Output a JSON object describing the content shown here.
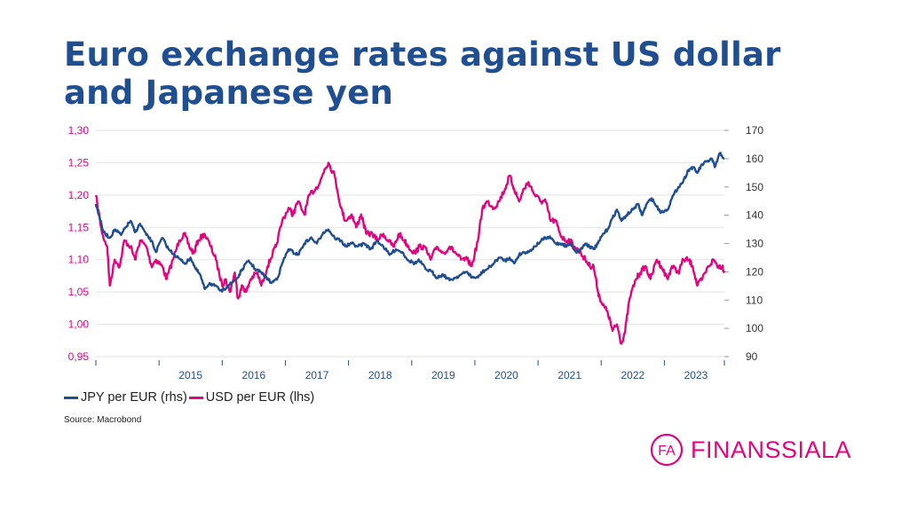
{
  "title": "Euro exchange rates against US dollar and Japanese yen",
  "source": "Source: Macrobond",
  "logo": {
    "monogram": "FA",
    "word": "FINANSSIALA"
  },
  "colors": {
    "title": "#1f4e91",
    "jpy": "#1f4e91",
    "usd": "#e0067f",
    "left_axis": "#e0067f",
    "right_axis": "#333333",
    "x_axis": "#1f4e91"
  },
  "legend": [
    {
      "label": "JPY per EUR (rhs)",
      "color": "#1f4e91"
    },
    {
      "label": "USD per EUR (lhs)",
      "color": "#e0067f"
    }
  ],
  "chart_data": {
    "type": "line",
    "title": "Euro exchange rates against US dollar and Japanese yen",
    "x_range": [
      2014.0,
      2023.95
    ],
    "x_ticks": [
      "2015",
      "2016",
      "2017",
      "2018",
      "2019",
      "2020",
      "2021",
      "2022",
      "2023"
    ],
    "y_left": {
      "label": "USD per EUR (lhs)",
      "range": [
        0.95,
        1.3
      ],
      "ticks": [
        "0,95",
        "1,00",
        "1,05",
        "1,10",
        "1,15",
        "1,20",
        "1,25",
        "1,30"
      ]
    },
    "y_right": {
      "label": "JPY per EUR (rhs)",
      "range": [
        90,
        170
      ],
      "ticks": [
        "90",
        "100",
        "110",
        "120",
        "130",
        "140",
        "150",
        "160",
        "170"
      ]
    },
    "grid": true,
    "legend_position": "bottom-left",
    "series": [
      {
        "name": "USD per EUR (lhs)",
        "axis": "left",
        "color": "#e0067f",
        "points": [
          [
            2014.0,
            1.2
          ],
          [
            2014.1,
            1.14
          ],
          [
            2014.18,
            1.12
          ],
          [
            2014.22,
            1.06
          ],
          [
            2014.3,
            1.1
          ],
          [
            2014.38,
            1.09
          ],
          [
            2014.45,
            1.13
          ],
          [
            2014.55,
            1.12
          ],
          [
            2014.62,
            1.1
          ],
          [
            2014.7,
            1.13
          ],
          [
            2014.8,
            1.12
          ],
          [
            2014.88,
            1.09
          ],
          [
            2014.95,
            1.1
          ],
          [
            2015.05,
            1.09
          ],
          [
            2015.12,
            1.07
          ],
          [
            2015.22,
            1.1
          ],
          [
            2015.32,
            1.13
          ],
          [
            2015.4,
            1.14
          ],
          [
            2015.48,
            1.12
          ],
          [
            2015.55,
            1.11
          ],
          [
            2015.62,
            1.13
          ],
          [
            2015.72,
            1.14
          ],
          [
            2015.82,
            1.12
          ],
          [
            2015.9,
            1.1
          ],
          [
            2016.0,
            1.06
          ],
          [
            2016.05,
            1.07
          ],
          [
            2016.12,
            1.05
          ],
          [
            2016.2,
            1.08
          ],
          [
            2016.25,
            1.04
          ],
          [
            2016.32,
            1.06
          ],
          [
            2016.38,
            1.05
          ],
          [
            2016.45,
            1.07
          ],
          [
            2016.55,
            1.08
          ],
          [
            2016.62,
            1.06
          ],
          [
            2016.72,
            1.09
          ],
          [
            2016.8,
            1.11
          ],
          [
            2016.85,
            1.12
          ],
          [
            2016.95,
            1.16
          ],
          [
            2017.05,
            1.18
          ],
          [
            2017.12,
            1.17
          ],
          [
            2017.2,
            1.19
          ],
          [
            2017.3,
            1.17
          ],
          [
            2017.38,
            1.2
          ],
          [
            2017.48,
            1.21
          ],
          [
            2017.55,
            1.22
          ],
          [
            2017.62,
            1.24
          ],
          [
            2017.68,
            1.25
          ],
          [
            2017.78,
            1.23
          ],
          [
            2017.88,
            1.18
          ],
          [
            2017.95,
            1.16
          ],
          [
            2018.05,
            1.17
          ],
          [
            2018.12,
            1.15
          ],
          [
            2018.2,
            1.17
          ],
          [
            2018.28,
            1.14
          ],
          [
            2018.38,
            1.14
          ],
          [
            2018.45,
            1.13
          ],
          [
            2018.55,
            1.14
          ],
          [
            2018.62,
            1.13
          ],
          [
            2018.72,
            1.12
          ],
          [
            2018.8,
            1.14
          ],
          [
            2018.88,
            1.13
          ],
          [
            2018.95,
            1.12
          ],
          [
            2019.05,
            1.11
          ],
          [
            2019.12,
            1.12
          ],
          [
            2019.2,
            1.12
          ],
          [
            2019.3,
            1.1
          ],
          [
            2019.4,
            1.12
          ],
          [
            2019.5,
            1.11
          ],
          [
            2019.6,
            1.12
          ],
          [
            2019.7,
            1.11
          ],
          [
            2019.78,
            1.1
          ],
          [
            2019.88,
            1.1
          ],
          [
            2019.95,
            1.09
          ],
          [
            2020.05,
            1.13
          ],
          [
            2020.12,
            1.18
          ],
          [
            2020.2,
            1.19
          ],
          [
            2020.3,
            1.18
          ],
          [
            2020.38,
            1.19
          ],
          [
            2020.48,
            1.21
          ],
          [
            2020.55,
            1.23
          ],
          [
            2020.62,
            1.21
          ],
          [
            2020.7,
            1.19
          ],
          [
            2020.78,
            1.21
          ],
          [
            2020.85,
            1.22
          ],
          [
            2020.95,
            1.2
          ],
          [
            2021.05,
            1.19
          ],
          [
            2021.12,
            1.19
          ],
          [
            2021.2,
            1.16
          ],
          [
            2021.28,
            1.16
          ],
          [
            2021.35,
            1.14
          ],
          [
            2021.42,
            1.13
          ],
          [
            2021.5,
            1.13
          ],
          [
            2021.58,
            1.12
          ],
          [
            2021.68,
            1.11
          ],
          [
            2021.75,
            1.1
          ],
          [
            2021.82,
            1.09
          ],
          [
            2021.88,
            1.09
          ],
          [
            2021.95,
            1.05
          ],
          [
            2022.02,
            1.03
          ],
          [
            2022.1,
            1.02
          ],
          [
            2022.18,
            0.99
          ],
          [
            2022.25,
            1.0
          ],
          [
            2022.32,
            0.97
          ],
          [
            2022.38,
            0.99
          ],
          [
            2022.45,
            1.04
          ],
          [
            2022.55,
            1.07
          ],
          [
            2022.62,
            1.08
          ],
          [
            2022.7,
            1.09
          ],
          [
            2022.78,
            1.07
          ],
          [
            2022.88,
            1.1
          ],
          [
            2022.95,
            1.09
          ],
          [
            2023.05,
            1.07
          ],
          [
            2023.12,
            1.09
          ],
          [
            2023.22,
            1.08
          ],
          [
            2023.3,
            1.1
          ],
          [
            2023.38,
            1.1
          ],
          [
            2023.45,
            1.09
          ],
          [
            2023.52,
            1.06
          ],
          [
            2023.6,
            1.07
          ],
          [
            2023.7,
            1.09
          ],
          [
            2023.78,
            1.1
          ],
          [
            2023.85,
            1.09
          ],
          [
            2023.92,
            1.09
          ],
          [
            2023.95,
            1.08
          ]
        ]
      },
      {
        "name": "JPY per EUR (rhs)",
        "axis": "right",
        "color": "#1f4e91",
        "points": [
          [
            2014.0,
            144
          ],
          [
            2014.05,
            140
          ],
          [
            2014.12,
            134
          ],
          [
            2014.22,
            132
          ],
          [
            2014.3,
            135
          ],
          [
            2014.4,
            133
          ],
          [
            2014.48,
            136
          ],
          [
            2014.55,
            138
          ],
          [
            2014.62,
            134
          ],
          [
            2014.7,
            137
          ],
          [
            2014.8,
            133
          ],
          [
            2014.88,
            131
          ],
          [
            2014.95,
            127
          ],
          [
            2015.05,
            132
          ],
          [
            2015.15,
            128
          ],
          [
            2015.25,
            126
          ],
          [
            2015.35,
            124
          ],
          [
            2015.42,
            123
          ],
          [
            2015.5,
            125
          ],
          [
            2015.58,
            121
          ],
          [
            2015.65,
            119
          ],
          [
            2015.72,
            114
          ],
          [
            2015.8,
            116
          ],
          [
            2015.88,
            115
          ],
          [
            2016.0,
            113
          ],
          [
            2016.08,
            115
          ],
          [
            2016.15,
            116
          ],
          [
            2016.25,
            118
          ],
          [
            2016.32,
            121
          ],
          [
            2016.42,
            124
          ],
          [
            2016.52,
            121
          ],
          [
            2016.6,
            120
          ],
          [
            2016.7,
            118
          ],
          [
            2016.78,
            116
          ],
          [
            2016.88,
            118
          ],
          [
            2016.95,
            123
          ],
          [
            2017.05,
            128
          ],
          [
            2017.12,
            127
          ],
          [
            2017.2,
            126
          ],
          [
            2017.3,
            130
          ],
          [
            2017.4,
            132
          ],
          [
            2017.5,
            130
          ],
          [
            2017.6,
            134
          ],
          [
            2017.68,
            135
          ],
          [
            2017.78,
            132
          ],
          [
            2017.88,
            131
          ],
          [
            2017.95,
            129
          ],
          [
            2018.05,
            130
          ],
          [
            2018.15,
            129
          ],
          [
            2018.25,
            130
          ],
          [
            2018.35,
            128
          ],
          [
            2018.45,
            131
          ],
          [
            2018.55,
            129
          ],
          [
            2018.65,
            126
          ],
          [
            2018.75,
            128
          ],
          [
            2018.85,
            127
          ],
          [
            2018.95,
            124
          ],
          [
            2019.05,
            123
          ],
          [
            2019.12,
            124
          ],
          [
            2019.22,
            121
          ],
          [
            2019.32,
            120
          ],
          [
            2019.4,
            118
          ],
          [
            2019.5,
            119
          ],
          [
            2019.6,
            117
          ],
          [
            2019.7,
            118
          ],
          [
            2019.78,
            119
          ],
          [
            2019.88,
            120
          ],
          [
            2019.95,
            118
          ],
          [
            2020.05,
            118
          ],
          [
            2020.12,
            120
          ],
          [
            2020.2,
            121
          ],
          [
            2020.3,
            123
          ],
          [
            2020.38,
            125
          ],
          [
            2020.48,
            124
          ],
          [
            2020.55,
            125
          ],
          [
            2020.62,
            123
          ],
          [
            2020.7,
            126
          ],
          [
            2020.78,
            127
          ],
          [
            2020.85,
            127
          ],
          [
            2020.95,
            129
          ],
          [
            2021.05,
            131
          ],
          [
            2021.12,
            132
          ],
          [
            2021.2,
            132
          ],
          [
            2021.28,
            130
          ],
          [
            2021.38,
            130
          ],
          [
            2021.45,
            129
          ],
          [
            2021.52,
            130
          ],
          [
            2021.6,
            127
          ],
          [
            2021.68,
            128
          ],
          [
            2021.75,
            130
          ],
          [
            2021.82,
            129
          ],
          [
            2021.88,
            128
          ],
          [
            2021.95,
            130
          ],
          [
            2022.02,
            133
          ],
          [
            2022.1,
            135
          ],
          [
            2022.18,
            139
          ],
          [
            2022.25,
            142
          ],
          [
            2022.32,
            138
          ],
          [
            2022.4,
            140
          ],
          [
            2022.5,
            142
          ],
          [
            2022.58,
            144
          ],
          [
            2022.65,
            140
          ],
          [
            2022.72,
            144
          ],
          [
            2022.8,
            146
          ],
          [
            2022.88,
            143
          ],
          [
            2022.95,
            141
          ],
          [
            2023.05,
            142
          ],
          [
            2023.12,
            146
          ],
          [
            2023.22,
            150
          ],
          [
            2023.3,
            152
          ],
          [
            2023.38,
            156
          ],
          [
            2023.45,
            157
          ],
          [
            2023.52,
            155
          ],
          [
            2023.6,
            158
          ],
          [
            2023.68,
            159
          ],
          [
            2023.75,
            160
          ],
          [
            2023.8,
            157
          ],
          [
            2023.88,
            162
          ],
          [
            2023.95,
            160
          ]
        ]
      }
    ]
  }
}
